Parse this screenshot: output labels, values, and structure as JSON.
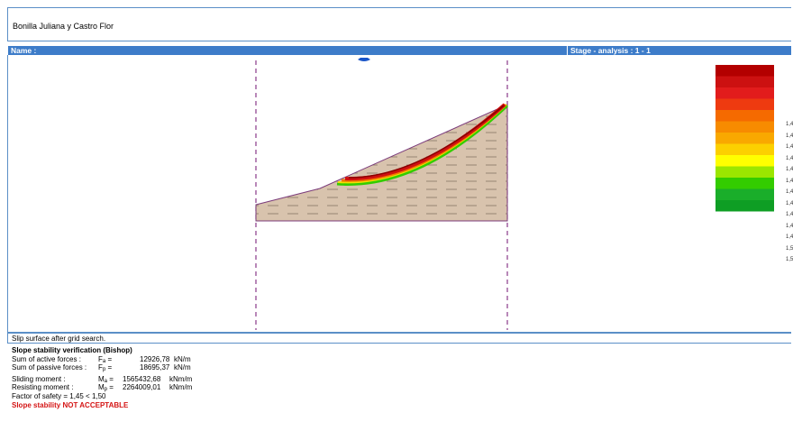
{
  "header": {
    "author": "Bonilla Juliana y Castro Flor"
  },
  "title_bar": {
    "name_label": "Name :",
    "stage_label": "Stage - analysis : 1 - 1"
  },
  "legend": {
    "colors": [
      "#b30000",
      "#cc1111",
      "#e21c1c",
      "#ee3a10",
      "#f56a00",
      "#f78b00",
      "#f9a800",
      "#fcd000",
      "#ffff00",
      "#9be600",
      "#33cc00",
      "#1aae2a",
      "#0e9e24"
    ],
    "labels": [
      "1,4",
      "1,4",
      "1,4",
      "1,4",
      "1,4",
      "1,4",
      "1,4",
      "1,4",
      "1,4",
      "1,4",
      "1,4",
      "1,5",
      "1,5"
    ]
  },
  "caption": "Slip surface after grid search.",
  "results": {
    "title": "Slope stability verification (Bishop)",
    "active": {
      "label": "Sum of active forces :",
      "symbol": "F",
      "sub": "a",
      "eq": " =",
      "value": "12926,78",
      "unit": "kN/m"
    },
    "passive": {
      "label": "Sum of passive forces :",
      "symbol": "F",
      "sub": "p",
      "eq": " =",
      "value": "18695,37",
      "unit": "kN/m"
    },
    "sliding": {
      "label": "Sliding moment :",
      "symbol": "M",
      "sub": "a",
      "eq": " =",
      "value": "1565432,68",
      "unit": "kNm/m"
    },
    "resisting": {
      "label": "Resisting moment :",
      "symbol": "M",
      "sub": "p",
      "eq": " =",
      "value": "2264009,01",
      "unit": "kNm/m"
    },
    "factor": "Factor of safety = 1,45 < 1,50",
    "verdict": "Slope stability NOT ACCEPTABLE"
  }
}
